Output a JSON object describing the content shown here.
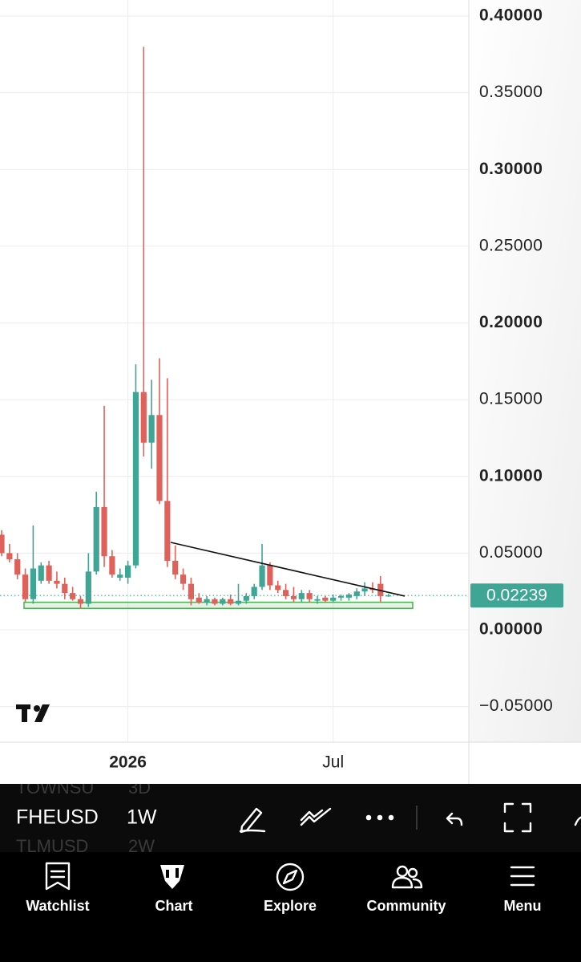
{
  "chart_data": {
    "type": "candlestick",
    "categories": [
      null,
      null,
      null,
      null,
      null,
      null,
      null,
      null,
      null,
      null,
      null,
      null,
      null,
      null,
      null,
      null,
      "2026",
      null,
      null,
      null,
      null,
      null,
      null,
      null,
      null,
      null,
      null,
      null,
      null,
      null,
      null,
      null,
      null,
      null,
      null,
      null,
      null,
      null,
      null,
      null,
      null,
      null,
      "Jul",
      null,
      null,
      null,
      null,
      null,
      null,
      null
    ],
    "series": [
      {
        "name": null,
        "open": [
          0.062,
          0.05,
          0.046,
          0.036,
          0.02,
          0.032,
          0.042,
          0.032,
          0.03,
          0.024,
          0.02,
          0.017,
          0.038,
          0.08,
          0.048,
          0.034,
          0.034,
          0.042,
          0.155,
          0.122,
          0.14,
          0.084,
          0.045,
          0.036,
          0.03,
          0.021,
          0.018,
          0.02,
          0.017,
          0.02,
          0.017,
          0.019,
          0.022,
          0.028,
          0.042,
          0.029,
          0.026,
          0.022,
          0.02,
          0.024,
          0.019,
          0.021,
          0.019,
          0.021,
          0.021,
          0.022,
          0.025,
          0.027,
          0.03,
          0.0222
        ],
        "high": [
          0.065,
          0.056,
          0.05,
          0.04,
          0.068,
          0.044,
          0.045,
          0.038,
          0.034,
          0.028,
          0.022,
          0.05,
          0.09,
          0.146,
          0.052,
          0.04,
          0.045,
          0.173,
          0.38,
          0.163,
          0.177,
          0.164,
          0.055,
          0.04,
          0.034,
          0.024,
          0.022,
          0.021,
          0.021,
          0.023,
          0.03,
          0.024,
          0.03,
          0.056,
          0.044,
          0.032,
          0.03,
          0.028,
          0.026,
          0.026,
          0.022,
          0.022,
          0.023,
          0.023,
          0.024,
          0.027,
          0.031,
          0.031,
          0.035,
          0.0235
        ],
        "low": [
          0.048,
          0.044,
          0.033,
          0.018,
          0.017,
          0.03,
          0.03,
          0.027,
          0.02,
          0.019,
          0.014,
          0.015,
          0.036,
          0.041,
          0.034,
          0.032,
          0.03,
          0.04,
          0.113,
          0.105,
          0.082,
          0.041,
          0.033,
          0.026,
          0.016,
          0.017,
          0.016,
          0.016,
          0.016,
          0.016,
          0.016,
          0.017,
          0.02,
          0.026,
          0.026,
          0.024,
          0.02,
          0.018,
          0.018,
          0.018,
          0.017,
          0.018,
          0.018,
          0.019,
          0.019,
          0.02,
          0.022,
          0.024,
          0.018,
          0.0215
        ],
        "close": [
          0.05,
          0.046,
          0.036,
          0.02,
          0.04,
          0.042,
          0.032,
          0.03,
          0.024,
          0.02,
          0.017,
          0.038,
          0.08,
          0.048,
          0.036,
          0.036,
          0.042,
          0.155,
          0.122,
          0.14,
          0.084,
          0.045,
          0.036,
          0.03,
          0.02,
          0.018,
          0.02,
          0.017,
          0.02,
          0.017,
          0.019,
          0.022,
          0.028,
          0.042,
          0.029,
          0.026,
          0.022,
          0.02,
          0.024,
          0.02,
          0.02,
          0.019,
          0.021,
          0.022,
          0.023,
          0.025,
          0.027,
          0.026,
          0.022,
          0.02239
        ]
      }
    ],
    "up_color": "#3fa595",
    "down_color": "#e0605a",
    "ylim": [
      -0.0732,
      0.4105
    ],
    "yticks": [
      {
        "value": 0.4,
        "label": "0.40000"
      },
      {
        "value": 0.35,
        "label": "0.35000"
      },
      {
        "value": 0.3,
        "label": "0.30000"
      },
      {
        "value": 0.25,
        "label": "0.25000"
      },
      {
        "value": 0.2,
        "label": "0.20000"
      },
      {
        "value": 0.15,
        "label": "0.15000"
      },
      {
        "value": 0.1,
        "label": "0.10000"
      },
      {
        "value": 0.05,
        "label": "0.05000"
      },
      {
        "value": 0,
        "label": "0.00000"
      },
      {
        "value": -0.05,
        "label": "−0.05000"
      }
    ],
    "grid": true,
    "last_price": 0.02239,
    "trendline": {
      "values": [
        0.057,
        0.022
      ]
    },
    "support_zone": {
      "values": [
        0.018,
        0.014
      ]
    }
  },
  "toolbar": {
    "symbol": "FHEUSD",
    "interval": "1W",
    "ghost_above": [
      "TOWNSU",
      "3D"
    ],
    "ghost_below": [
      "TLMUSD",
      "2W"
    ]
  },
  "nav": [
    "Watchlist",
    "Chart",
    "Explore",
    "Community",
    "Menu"
  ]
}
